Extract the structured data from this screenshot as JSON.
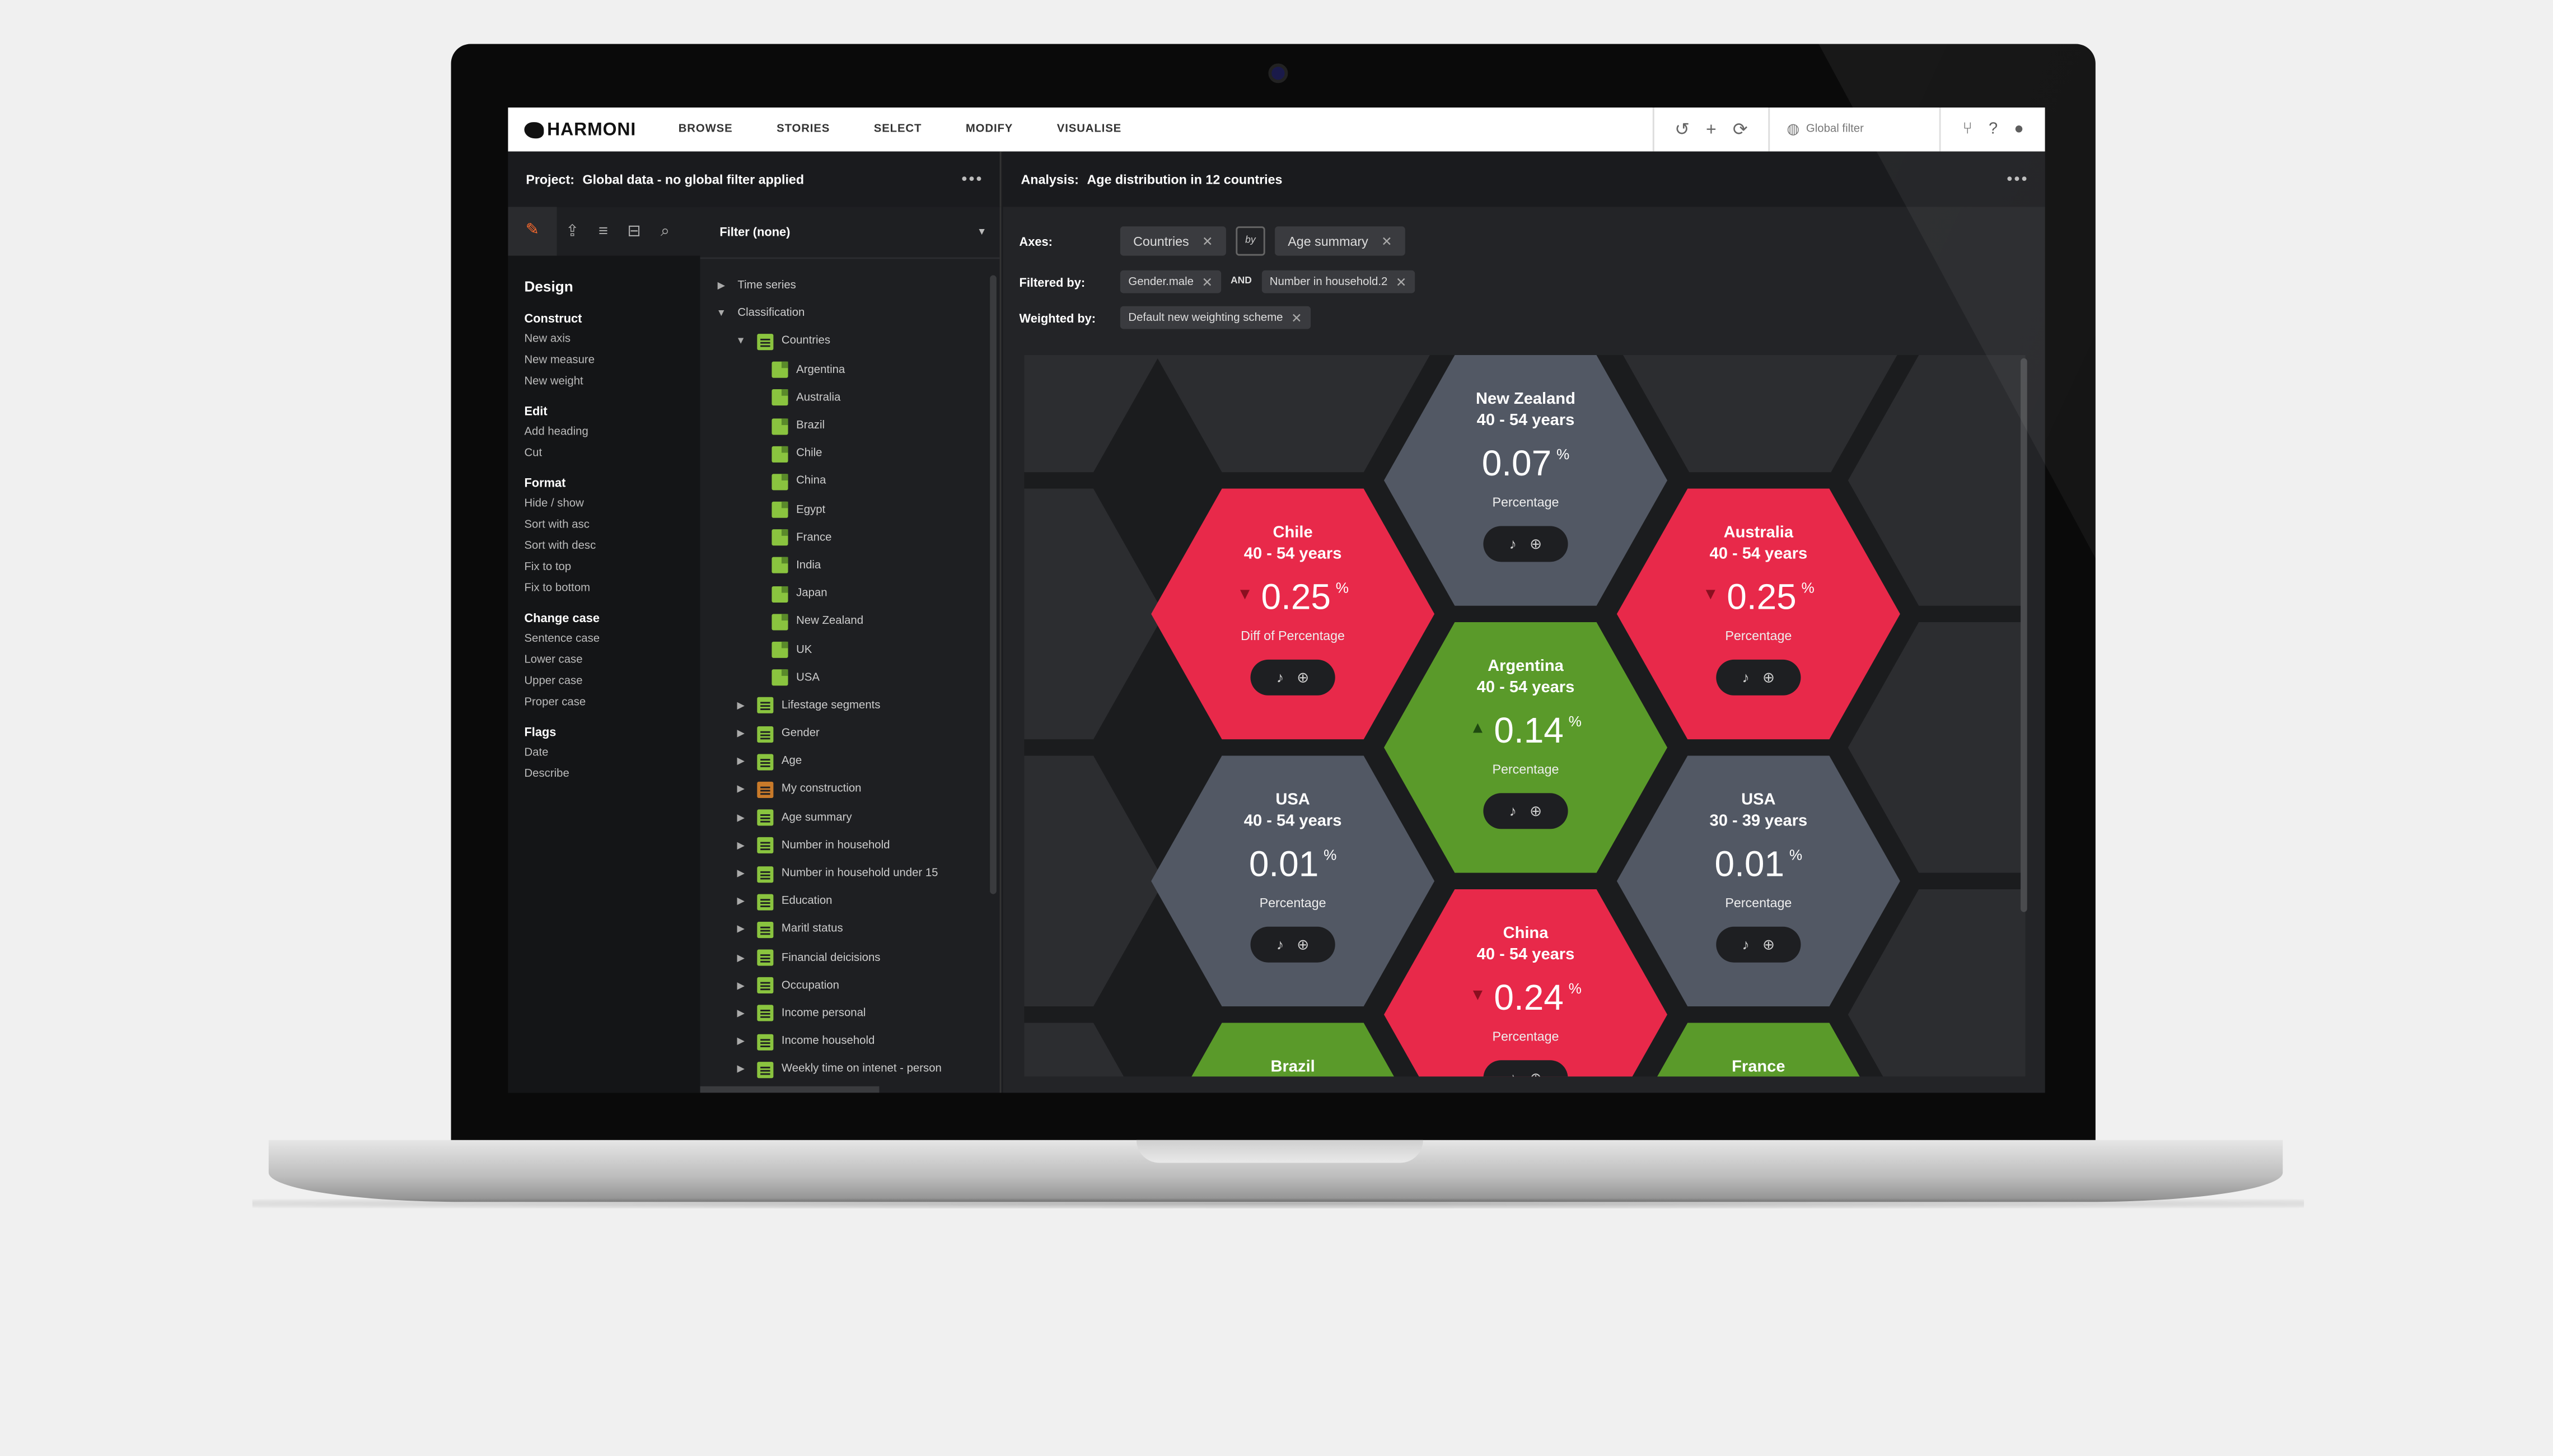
{
  "nav": {
    "logo": "HARMONI",
    "items": [
      "BROWSE",
      "STORIES",
      "SELECT",
      "MODIFY",
      "VISUALISE"
    ],
    "global_filter": "Global filter"
  },
  "project_header": {
    "label": "Project:",
    "value": "Global data - no global filter applied"
  },
  "analysis_header": {
    "label": "Analysis:",
    "value": "Age distribution in 12 countries"
  },
  "design_panel": {
    "title": "Design",
    "sections": [
      {
        "heading": "Construct",
        "items": [
          "New axis",
          "New measure",
          "New weight"
        ]
      },
      {
        "heading": "Edit",
        "items": [
          "Add heading",
          "Cut"
        ]
      },
      {
        "heading": "Format",
        "items": [
          "Hide / show",
          "Sort with asc",
          "Sort with desc",
          "Fix to top",
          "Fix to bottom"
        ]
      },
      {
        "heading": "Change case",
        "items": [
          "Sentence case",
          "Lower case",
          "Upper case",
          "Proper case"
        ]
      },
      {
        "heading": "Flags",
        "items": [
          "Date",
          "Describe"
        ]
      }
    ]
  },
  "tree": {
    "filter_label": "Filter (none)",
    "rows": [
      {
        "label": "Time series",
        "level": 0,
        "toggle": "▶",
        "icon": "none"
      },
      {
        "label": "Classification",
        "level": 0,
        "toggle": "▼",
        "icon": "none"
      },
      {
        "label": "Countries",
        "level": 1,
        "toggle": "▼",
        "icon": "folder"
      },
      {
        "label": "Argentina",
        "level": 2,
        "toggle": "",
        "icon": "leaf"
      },
      {
        "label": "Australia",
        "level": 2,
        "toggle": "",
        "icon": "leaf"
      },
      {
        "label": "Brazil",
        "level": 2,
        "toggle": "",
        "icon": "leaf"
      },
      {
        "label": "Chile",
        "level": 2,
        "toggle": "",
        "icon": "leaf"
      },
      {
        "label": "China",
        "level": 2,
        "toggle": "",
        "icon": "leaf"
      },
      {
        "label": "Egypt",
        "level": 2,
        "toggle": "",
        "icon": "leaf"
      },
      {
        "label": "France",
        "level": 2,
        "toggle": "",
        "icon": "leaf"
      },
      {
        "label": "India",
        "level": 2,
        "toggle": "",
        "icon": "leaf"
      },
      {
        "label": "Japan",
        "level": 2,
        "toggle": "",
        "icon": "leaf"
      },
      {
        "label": "New Zealand",
        "level": 2,
        "toggle": "",
        "icon": "leaf"
      },
      {
        "label": "UK",
        "level": 2,
        "toggle": "",
        "icon": "leaf"
      },
      {
        "label": "USA",
        "level": 2,
        "toggle": "",
        "icon": "leaf"
      },
      {
        "label": "Lifestage segments",
        "level": 1,
        "toggle": "▶",
        "icon": "folder"
      },
      {
        "label": "Gender",
        "level": 1,
        "toggle": "▶",
        "icon": "folder"
      },
      {
        "label": "Age",
        "level": 1,
        "toggle": "▶",
        "icon": "folder"
      },
      {
        "label": "My construction",
        "level": 1,
        "toggle": "▶",
        "icon": "cons"
      },
      {
        "label": "Age summary",
        "level": 1,
        "toggle": "▶",
        "icon": "folder"
      },
      {
        "label": "Number in household",
        "level": 1,
        "toggle": "▶",
        "icon": "folder"
      },
      {
        "label": "Number in household under 15",
        "level": 1,
        "toggle": "▶",
        "icon": "folder"
      },
      {
        "label": "Education",
        "level": 1,
        "toggle": "▶",
        "icon": "folder"
      },
      {
        "label": "Maritl status",
        "level": 1,
        "toggle": "▶",
        "icon": "folder"
      },
      {
        "label": "Financial deicisions",
        "level": 1,
        "toggle": "▶",
        "icon": "folder"
      },
      {
        "label": "Occupation",
        "level": 1,
        "toggle": "▶",
        "icon": "folder"
      },
      {
        "label": "Income personal",
        "level": 1,
        "toggle": "▶",
        "icon": "folder"
      },
      {
        "label": "Income household",
        "level": 1,
        "toggle": "▶",
        "icon": "folder"
      },
      {
        "label": "Weekly time on intenet - person",
        "level": 1,
        "toggle": "▶",
        "icon": "folder"
      }
    ]
  },
  "axes": {
    "label": "Axes:",
    "chips": [
      "Countries",
      "Age summary"
    ],
    "by": "by"
  },
  "filtered_by": {
    "label": "Filtered by:",
    "chips": [
      "Gender.male",
      "Number in household.2"
    ],
    "joiner": "AND"
  },
  "weighted_by": {
    "label": "Weighted by:",
    "chips": [
      "Default new weighting scheme"
    ]
  },
  "colors": {
    "red": "#e8294a",
    "green": "#5a9a2a",
    "gray": "#525864",
    "accent": "#ff6b2d"
  },
  "hexes": [
    {
      "name": "New Zealand",
      "age": "40 - 54 years",
      "value": "0.07",
      "unit": "%",
      "metric": "Percentage",
      "arrow": "",
      "color": "gray",
      "slot": "nz"
    },
    {
      "name": "Chile",
      "age": "40 - 54 years",
      "value": "0.25",
      "unit": "%",
      "metric": "Diff of Percentage",
      "arrow": "down",
      "color": "red",
      "slot": "chile"
    },
    {
      "name": "Australia",
      "age": "40 - 54 years",
      "value": "0.25",
      "unit": "%",
      "metric": "Percentage",
      "arrow": "down",
      "color": "red",
      "slot": "aus"
    },
    {
      "name": "Argentina",
      "age": "40 - 54 years",
      "value": "0.14",
      "unit": "%",
      "metric": "Percentage",
      "arrow": "up",
      "color": "green",
      "slot": "arg"
    },
    {
      "name": "USA",
      "age": "40 - 54 years",
      "value": "0.01",
      "unit": "%",
      "metric": "Percentage",
      "arrow": "",
      "color": "gray",
      "slot": "usa1"
    },
    {
      "name": "USA",
      "age": "30 - 39 years",
      "value": "0.01",
      "unit": "%",
      "metric": "Percentage",
      "arrow": "",
      "color": "gray",
      "slot": "usa2"
    },
    {
      "name": "China",
      "age": "40 - 54 years",
      "value": "0.24",
      "unit": "%",
      "metric": "Percentage",
      "arrow": "down",
      "color": "red",
      "slot": "china"
    },
    {
      "name": "Brazil",
      "age": "",
      "value": "",
      "unit": "",
      "metric": "",
      "arrow": "",
      "color": "green",
      "slot": "brazil"
    },
    {
      "name": "France",
      "age": "",
      "value": "",
      "unit": "",
      "metric": "",
      "arrow": "",
      "color": "green",
      "slot": "france"
    }
  ]
}
